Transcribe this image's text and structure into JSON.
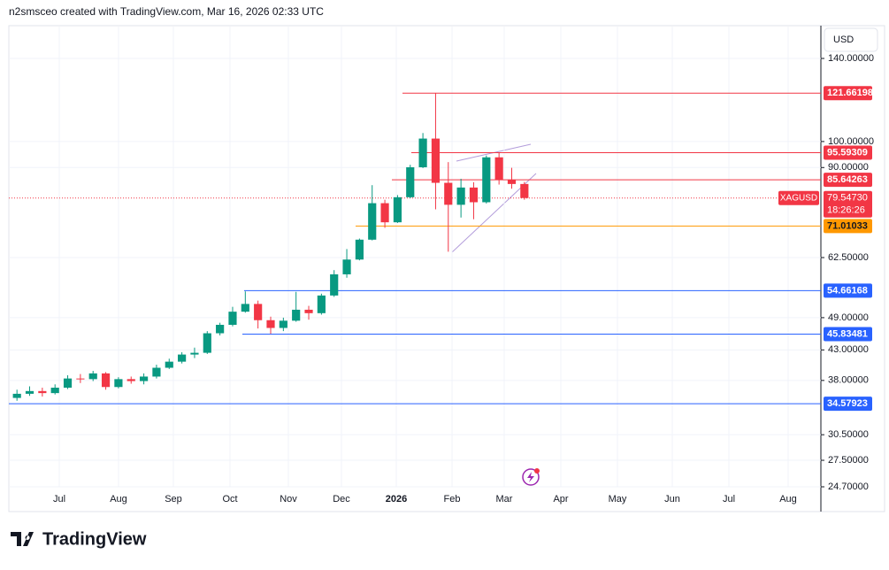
{
  "chart_data": {
    "type": "candlestick",
    "header": "n2smsceo created with TradingView.com, Mar 16, 2026 02:33 UTC",
    "currency": "USD",
    "brand": "TradingView",
    "symbol": "XAGUSD",
    "last_price": {
      "value": 79.5473,
      "label": "79.54730"
    },
    "countdown": "18:26:26",
    "log_scale": true,
    "grid": true,
    "up_color": "#089981",
    "down_color": "#f23645",
    "ylim": [
      24.7,
      159.3
    ],
    "yticks": [
      {
        "value": 140,
        "label": "140.00000"
      },
      {
        "value": 100,
        "label": "100.00000"
      },
      {
        "value": 90,
        "label": "90.00000"
      },
      {
        "value": 62.5,
        "label": "62.50000"
      },
      {
        "value": 49,
        "label": "49.00000"
      },
      {
        "value": 43,
        "label": "43.00000"
      },
      {
        "value": 38,
        "label": "38.00000"
      },
      {
        "value": 30.5,
        "label": "30.50000"
      },
      {
        "value": 27.5,
        "label": "27.50000"
      },
      {
        "value": 24.7,
        "label": "24.70000"
      }
    ],
    "x_labels": [
      "Jul",
      "Aug",
      "Sep",
      "Oct",
      "Nov",
      "Dec",
      "2026",
      "Feb",
      "Mar",
      "Apr",
      "May",
      "Jun",
      "Jul",
      "Aug"
    ],
    "levels": [
      {
        "value": 121.66198,
        "color": "#f23645"
      },
      {
        "value": 95.59309,
        "color": "#f23645"
      },
      {
        "value": 85.64263,
        "color": "#f23645"
      },
      {
        "value": 71.01033,
        "color": "#ff9800"
      },
      {
        "value": 54.66168,
        "color": "#2962ff"
      },
      {
        "value": 45.83481,
        "color": "#2962ff"
      },
      {
        "value": 34.57923,
        "color": "#2962ff"
      }
    ],
    "open": [
      35.4,
      36.0,
      36.4,
      36.1,
      36.9,
      38.3,
      38.2,
      39.1,
      37.0,
      38.2,
      37.9,
      38.6,
      40.0,
      41.0,
      42.2,
      42.5,
      46.0,
      47.6,
      50.2,
      51.8,
      48.5,
      47.0,
      48.4,
      50.6,
      49.9,
      53.6,
      58.4,
      62.0,
      67.2,
      77.9,
      72.1,
      79.8,
      90.1,
      101.2,
      84.6,
      77.4,
      83.0,
      78.2,
      93.8,
      85.6,
      84.2
    ],
    "high": [
      36.6,
      37.1,
      36.9,
      37.4,
      38.8,
      39.0,
      39.5,
      39.3,
      38.5,
      38.6,
      39.1,
      40.5,
      41.5,
      42.6,
      43.4,
      46.4,
      48.0,
      51.2,
      54.5,
      52.5,
      49.2,
      49.0,
      54.4,
      51.4,
      54.0,
      59.4,
      64.7,
      67.5,
      83.8,
      79.0,
      80.5,
      91.0,
      103.5,
      121.66,
      92.0,
      86.0,
      84.8,
      94.5,
      95.59,
      89.9,
      84.9
    ],
    "low": [
      35.0,
      35.7,
      35.6,
      35.9,
      36.7,
      37.6,
      37.9,
      36.6,
      36.8,
      37.5,
      37.4,
      38.3,
      39.8,
      40.7,
      41.6,
      42.3,
      45.6,
      47.3,
      50.0,
      46.9,
      45.9,
      46.4,
      48.2,
      48.6,
      49.6,
      53.3,
      57.6,
      61.8,
      67.0,
      70.5,
      71.9,
      79.5,
      89.8,
      76.0,
      64.0,
      73.5,
      73.0,
      77.8,
      84.0,
      82.6,
      79.0
    ],
    "close": [
      36.0,
      36.4,
      36.1,
      36.9,
      38.3,
      38.2,
      39.1,
      37.0,
      38.2,
      37.9,
      38.6,
      40.0,
      41.0,
      42.2,
      42.5,
      46.0,
      47.6,
      50.2,
      51.8,
      48.5,
      47.0,
      48.4,
      50.6,
      49.9,
      53.6,
      58.4,
      62.0,
      67.2,
      77.9,
      72.1,
      79.8,
      90.1,
      101.2,
      84.6,
      77.4,
      83.0,
      78.2,
      93.8,
      85.6,
      84.2,
      79.55
    ]
  }
}
